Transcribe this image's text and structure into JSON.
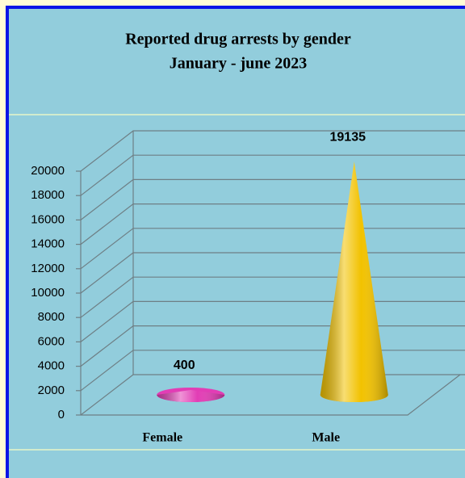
{
  "chart_data": {
    "type": "cone",
    "title": "Reported drug arrests by gender",
    "subtitle": "January - june 2023",
    "categories": [
      "Female",
      "Male"
    ],
    "values": [
      400,
      19135
    ],
    "colors": [
      "#e23db5",
      "#f2c200"
    ],
    "ylim": [
      0,
      20000
    ],
    "yticks": [
      0,
      2000,
      4000,
      6000,
      8000,
      10000,
      12000,
      14000,
      16000,
      18000,
      20000
    ],
    "grid": true
  }
}
